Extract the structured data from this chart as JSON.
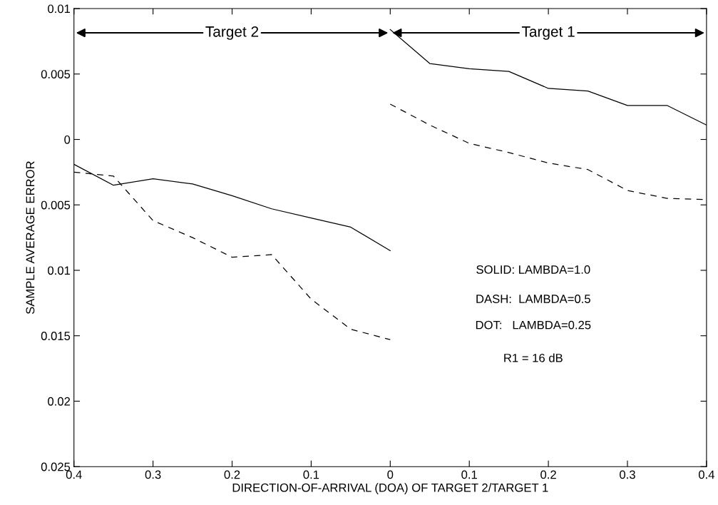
{
  "chart_data": {
    "type": "line",
    "xlabel": "DIRECTION-OF-ARRIVAL (DOA) OF TARGET 2/TARGET 1",
    "ylabel": "SAMPLE AVERAGE ERROR",
    "xlim": [
      -0.4,
      0.4
    ],
    "ylim": [
      -0.025,
      0.01
    ],
    "xticks": [
      {
        "value": -0.4,
        "label": "0.4"
      },
      {
        "value": -0.3,
        "label": "0.3"
      },
      {
        "value": -0.2,
        "label": "0.2"
      },
      {
        "value": -0.1,
        "label": "0.1"
      },
      0,
      0.1,
      0.2,
      0.3,
      0.4
    ],
    "yticks": [
      0.01,
      0.005,
      0,
      {
        "value": -0.005,
        "label": "0.005"
      },
      {
        "value": -0.01,
        "label": "0.01"
      },
      {
        "value": -0.015,
        "label": "0.015"
      },
      {
        "value": -0.02,
        "label": "0.02"
      },
      {
        "value": -0.025,
        "label": "0.025"
      }
    ],
    "grid": false,
    "legend": false,
    "series": [
      {
        "color": "#000000",
        "line_style": "solid",
        "x": [
          -0.4,
          -0.35,
          -0.3,
          -0.25,
          -0.2,
          -0.15,
          -0.1,
          -0.05,
          0
        ],
        "values": [
          -0.0019,
          -0.0035,
          -0.003,
          -0.0034,
          -0.0043,
          -0.0053,
          -0.006,
          -0.0067,
          -0.0085
        ]
      },
      {
        "color": "#000000",
        "line_style": "dashed",
        "x": [
          -0.4,
          -0.35,
          -0.3,
          -0.25,
          -0.2,
          -0.15,
          -0.1,
          -0.05,
          0
        ],
        "values": [
          -0.0025,
          -0.0028,
          -0.0062,
          -0.0075,
          -0.009,
          -0.0088,
          -0.0122,
          -0.0145,
          -0.0153
        ]
      },
      {
        "color": "#000000",
        "line_style": "solid",
        "x": [
          0,
          0.05,
          0.1,
          0.15,
          0.2,
          0.25,
          0.3,
          0.35,
          0.4
        ],
        "values": [
          0.0084,
          0.0058,
          0.0054,
          0.0052,
          0.0039,
          0.0037,
          0.0026,
          0.0026,
          0.0011
        ]
      },
      {
        "color": "#000000",
        "line_style": "dashed",
        "x": [
          0,
          0.05,
          0.1,
          0.15,
          0.2,
          0.25,
          0.3,
          0.35,
          0.4
        ],
        "values": [
          0.0027,
          0.0011,
          -0.0003,
          -0.001,
          -0.0018,
          -0.0023,
          -0.0039,
          -0.0045,
          -0.0046
        ]
      }
    ],
    "annotations": [
      "Target 2",
      "Target 1",
      "SOLID: LAMBDA=1.0",
      "DASH:  LAMBDA=0.5",
      "DOT:   LAMBDA=0.25",
      "R1 = 16 dB"
    ]
  }
}
